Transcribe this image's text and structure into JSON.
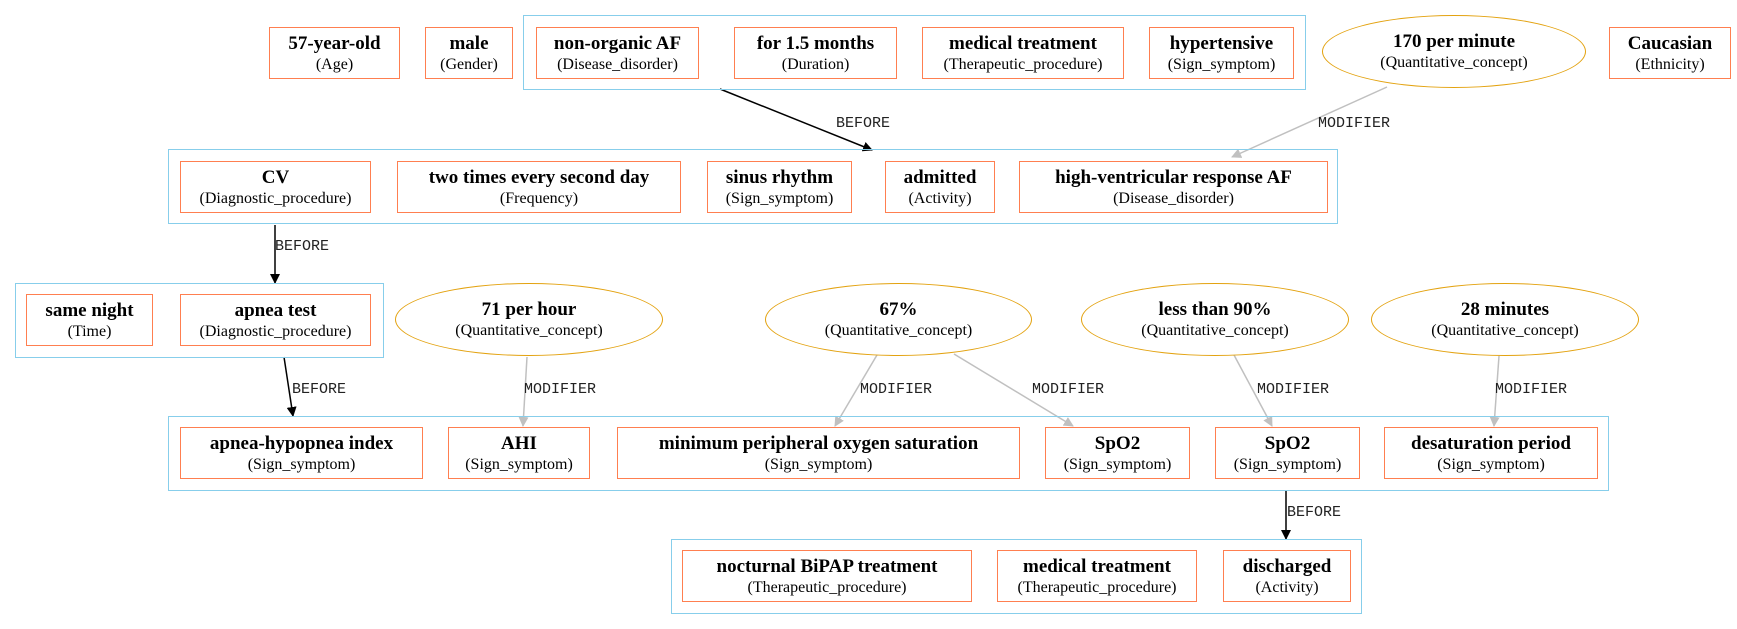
{
  "nodes": {
    "age": {
      "label": "57-year-old",
      "type": "(Age)"
    },
    "gender": {
      "label": "male",
      "type": "(Gender)"
    },
    "nonorg": {
      "label": "non-organic AF",
      "type": "(Disease_disorder)"
    },
    "dur": {
      "label": "for 1.5 months",
      "type": "(Duration)"
    },
    "medtx1": {
      "label": "medical treatment",
      "type": "(Therapeutic_procedure)"
    },
    "hyper": {
      "label": "hypertensive",
      "type": "(Sign_symptom)"
    },
    "q170": {
      "label": "170 per minute",
      "type": "(Quantitative_concept)"
    },
    "cauc": {
      "label": "Caucasian",
      "type": "(Ethnicity)"
    },
    "cv": {
      "label": "CV",
      "type": "(Diagnostic_procedure)"
    },
    "freq": {
      "label": "two times every second day",
      "type": "(Frequency)"
    },
    "sinus": {
      "label": "sinus rhythm",
      "type": "(Sign_symptom)"
    },
    "admitted": {
      "label": "admitted",
      "type": "(Activity)"
    },
    "hvr": {
      "label": "high-ventricular response AF",
      "type": "(Disease_disorder)"
    },
    "night": {
      "label": "same night",
      "type": "(Time)"
    },
    "apnea": {
      "label": "apnea test",
      "type": "(Diagnostic_procedure)"
    },
    "q71": {
      "label": "71 per hour",
      "type": "(Quantitative_concept)"
    },
    "q67": {
      "label": "67%",
      "type": "(Quantitative_concept)"
    },
    "q90": {
      "label": "less than 90%",
      "type": "(Quantitative_concept)"
    },
    "q28": {
      "label": "28 minutes",
      "type": "(Quantitative_concept)"
    },
    "ahi_idx": {
      "label": "apnea-hypopnea index",
      "type": "(Sign_symptom)"
    },
    "ahi": {
      "label": "AHI",
      "type": "(Sign_symptom)"
    },
    "minsat": {
      "label": "minimum peripheral oxygen saturation",
      "type": "(Sign_symptom)"
    },
    "spo2a": {
      "label": "SpO2",
      "type": "(Sign_symptom)"
    },
    "spo2b": {
      "label": "SpO2",
      "type": "(Sign_symptom)"
    },
    "desat": {
      "label": "desaturation period",
      "type": "(Sign_symptom)"
    },
    "bipap": {
      "label": "nocturnal BiPAP treatment",
      "type": "(Therapeutic_procedure)"
    },
    "medtx2": {
      "label": "medical treatment",
      "type": "(Therapeutic_procedure)"
    },
    "disch": {
      "label": "discharged",
      "type": "(Activity)"
    }
  },
  "edges": {
    "e1": "BEFORE",
    "e2": "MODIFIER",
    "e3": "BEFORE",
    "e4": "BEFORE",
    "e5": "MODIFIER",
    "e6": "MODIFIER",
    "e7": "MODIFIER",
    "e8": "MODIFIER",
    "e9": "MODIFIER",
    "e10": "BEFORE"
  },
  "colors": {
    "entity_border": "#ff7f50",
    "quantity_border": "#e3a20f",
    "group_border": "#87ceeb",
    "before_edge": "#000000",
    "modifier_edge": "#c0c0c0"
  }
}
